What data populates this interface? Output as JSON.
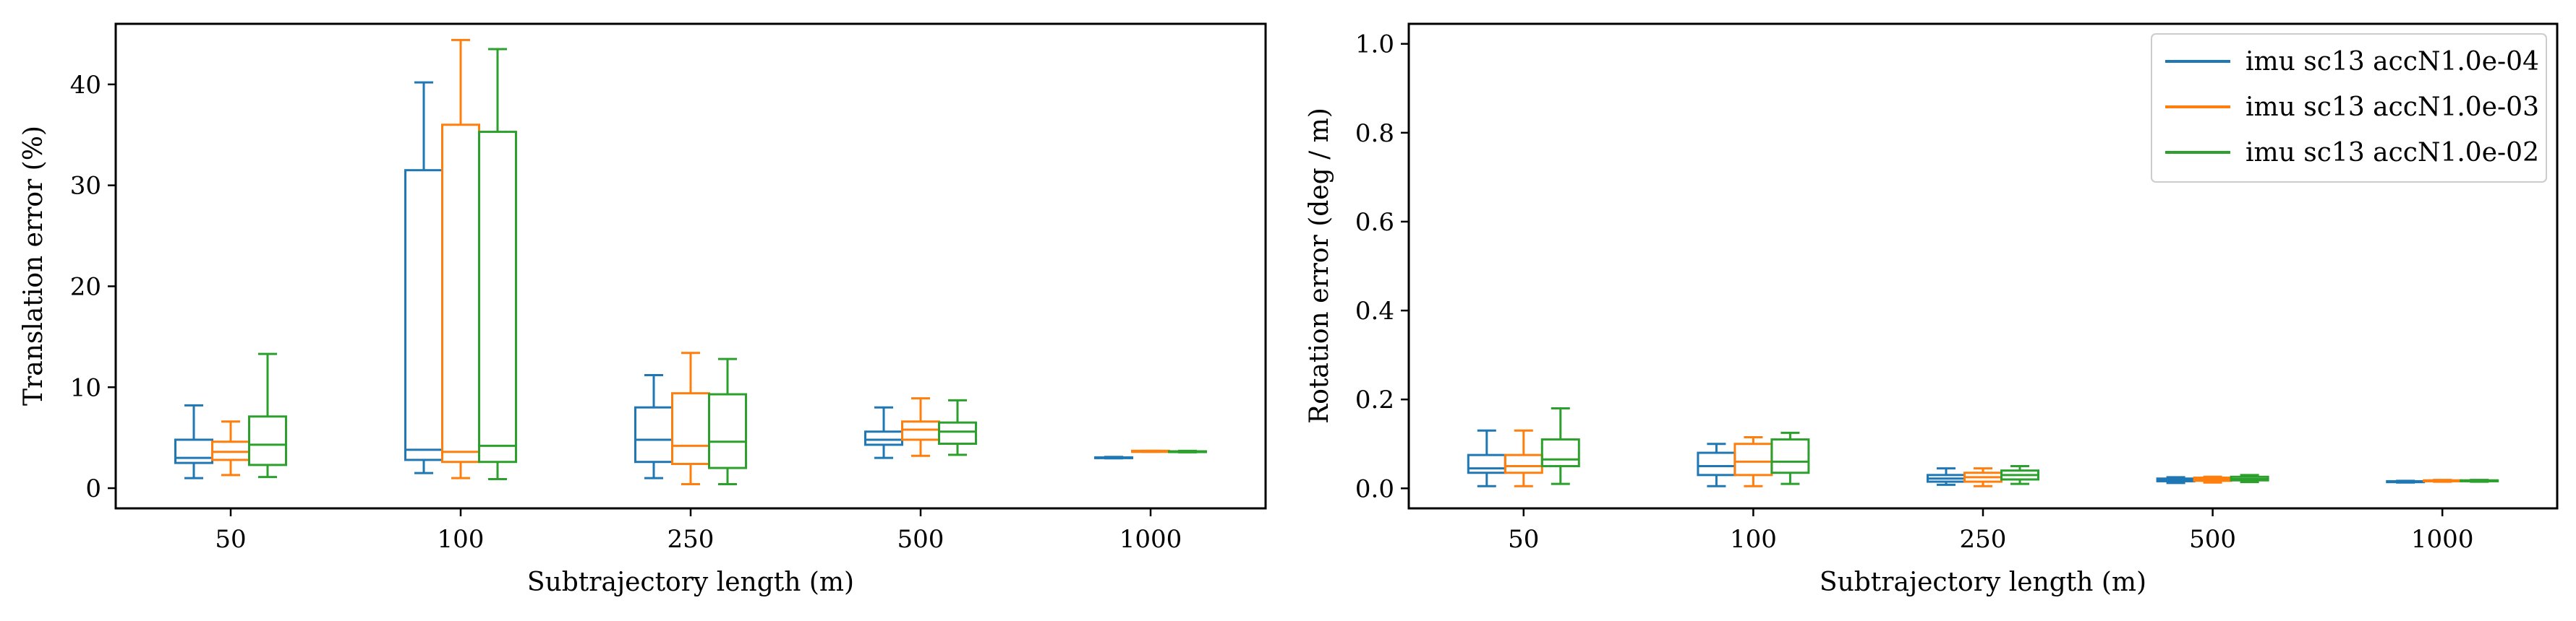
{
  "chart_data": [
    {
      "type": "box",
      "ylabel": "Translation error (%)",
      "xlabel": "Subtrajectory length (m)",
      "categories": [
        "50",
        "100",
        "250",
        "500",
        "1000"
      ],
      "ylim": [
        -2,
        46
      ],
      "yticks": [
        0,
        10,
        20,
        30,
        40
      ],
      "grid": false,
      "series": [
        {
          "name": "imu sc13 accN1.0e-04",
          "color": "#1f77b4",
          "boxes": [
            {
              "whislo": 1.0,
              "q1": 2.5,
              "med": 3.0,
              "q3": 4.8,
              "whishi": 8.2
            },
            {
              "whislo": 1.5,
              "q1": 2.8,
              "med": 3.8,
              "q3": 31.5,
              "whishi": 40.2
            },
            {
              "whislo": 1.0,
              "q1": 2.6,
              "med": 4.8,
              "q3": 8.0,
              "whishi": 11.2
            },
            {
              "whislo": 3.0,
              "q1": 4.3,
              "med": 4.8,
              "q3": 5.6,
              "whishi": 8.0
            },
            {
              "whislo": 2.95,
              "q1": 3.0,
              "med": 3.0,
              "q3": 3.05,
              "whishi": 3.1
            }
          ]
        },
        {
          "name": "imu sc13 accN1.0e-03",
          "color": "#ff7f0e",
          "boxes": [
            {
              "whislo": 1.3,
              "q1": 2.8,
              "med": 3.6,
              "q3": 4.6,
              "whishi": 6.6
            },
            {
              "whislo": 1.0,
              "q1": 2.6,
              "med": 3.6,
              "q3": 36.0,
              "whishi": 44.4
            },
            {
              "whislo": 0.4,
              "q1": 2.4,
              "med": 4.2,
              "q3": 9.4,
              "whishi": 13.4
            },
            {
              "whislo": 3.2,
              "q1": 4.8,
              "med": 5.8,
              "q3": 6.6,
              "whishi": 8.9
            },
            {
              "whislo": 3.6,
              "q1": 3.6,
              "med": 3.65,
              "q3": 3.7,
              "whishi": 3.7
            }
          ]
        },
        {
          "name": "imu sc13 accN1.0e-02",
          "color": "#2ca02c",
          "boxes": [
            {
              "whislo": 1.1,
              "q1": 2.3,
              "med": 4.3,
              "q3": 7.1,
              "whishi": 13.3
            },
            {
              "whislo": 0.9,
              "q1": 2.6,
              "med": 4.2,
              "q3": 35.3,
              "whishi": 43.5
            },
            {
              "whislo": 0.4,
              "q1": 2.0,
              "med": 4.6,
              "q3": 9.3,
              "whishi": 12.8
            },
            {
              "whislo": 3.3,
              "q1": 4.4,
              "med": 5.6,
              "q3": 6.5,
              "whishi": 8.7
            },
            {
              "whislo": 3.55,
              "q1": 3.6,
              "med": 3.6,
              "q3": 3.65,
              "whishi": 3.7
            }
          ]
        }
      ]
    },
    {
      "type": "box",
      "ylabel": "Rotation error (deg / m)",
      "xlabel": "Subtrajectory length (m)",
      "categories": [
        "50",
        "100",
        "250",
        "500",
        "1000"
      ],
      "ylim": [
        -0.045,
        1.045
      ],
      "yticks": [
        "0.0",
        "0.2",
        "0.4",
        "0.6",
        "0.8",
        "1.0"
      ],
      "grid": false,
      "legend": "top-right",
      "series": [
        {
          "name": "imu sc13 accN1.0e-04",
          "color": "#1f77b4",
          "boxes": [
            {
              "whislo": 0.005,
              "q1": 0.035,
              "med": 0.045,
              "q3": 0.075,
              "whishi": 0.13
            },
            {
              "whislo": 0.005,
              "q1": 0.03,
              "med": 0.05,
              "q3": 0.08,
              "whishi": 0.1
            },
            {
              "whislo": 0.008,
              "q1": 0.015,
              "med": 0.022,
              "q3": 0.03,
              "whishi": 0.045
            },
            {
              "whislo": 0.012,
              "q1": 0.016,
              "med": 0.019,
              "q3": 0.022,
              "whishi": 0.025
            },
            {
              "whislo": 0.013,
              "q1": 0.014,
              "med": 0.015,
              "q3": 0.016,
              "whishi": 0.017
            }
          ]
        },
        {
          "name": "imu sc13 accN1.0e-03",
          "color": "#ff7f0e",
          "boxes": [
            {
              "whislo": 0.005,
              "q1": 0.035,
              "med": 0.05,
              "q3": 0.075,
              "whishi": 0.13
            },
            {
              "whislo": 0.005,
              "q1": 0.03,
              "med": 0.06,
              "q3": 0.1,
              "whishi": 0.115
            },
            {
              "whislo": 0.005,
              "q1": 0.015,
              "med": 0.025,
              "q3": 0.035,
              "whishi": 0.045
            },
            {
              "whislo": 0.013,
              "q1": 0.017,
              "med": 0.02,
              "q3": 0.024,
              "whishi": 0.026
            },
            {
              "whislo": 0.015,
              "q1": 0.016,
              "med": 0.017,
              "q3": 0.018,
              "whishi": 0.019
            }
          ]
        },
        {
          "name": "imu sc13 accN1.0e-02",
          "color": "#2ca02c",
          "boxes": [
            {
              "whislo": 0.01,
              "q1": 0.05,
              "med": 0.065,
              "q3": 0.11,
              "whishi": 0.18
            },
            {
              "whislo": 0.01,
              "q1": 0.035,
              "med": 0.06,
              "q3": 0.11,
              "whishi": 0.125
            },
            {
              "whislo": 0.01,
              "q1": 0.02,
              "med": 0.03,
              "q3": 0.04,
              "whishi": 0.05
            },
            {
              "whislo": 0.014,
              "q1": 0.018,
              "med": 0.021,
              "q3": 0.026,
              "whishi": 0.03
            },
            {
              "whislo": 0.015,
              "q1": 0.016,
              "med": 0.017,
              "q3": 0.018,
              "whishi": 0.019
            }
          ]
        }
      ]
    }
  ]
}
